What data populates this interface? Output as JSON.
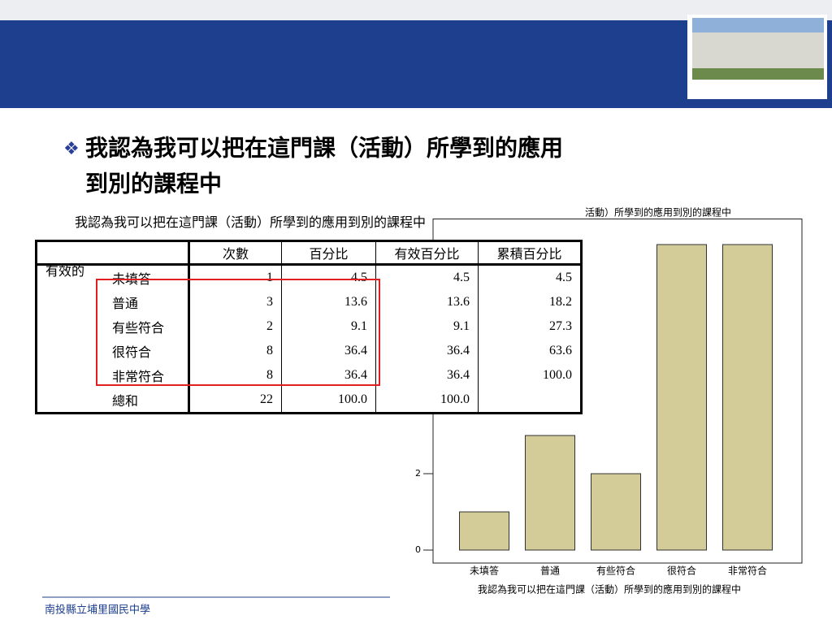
{
  "slide": {
    "title_line1": "我認為我可以把在這門課（活動）所學到的應用",
    "title_line2": "到別的課程中",
    "footer": "南投縣立埔里國民中學"
  },
  "table": {
    "caption": "我認為我可以把在這門課（活動）所學到的應用到別的課程中",
    "columns": [
      "次數",
      "百分比",
      "有效百分比",
      "累積百分比"
    ],
    "group": "有效的",
    "rows": [
      [
        "未填答",
        "1",
        "4.5",
        "4.5",
        "4.5"
      ],
      [
        "普通",
        "3",
        "13.6",
        "13.6",
        "18.2"
      ],
      [
        "有些符合",
        "2",
        "9.1",
        "9.1",
        "27.3"
      ],
      [
        "很符合",
        "8",
        "36.4",
        "36.4",
        "63.6"
      ],
      [
        "非常符合",
        "8",
        "36.4",
        "36.4",
        "100.0"
      ],
      [
        "總和",
        "22",
        "100.0",
        "100.0",
        ""
      ]
    ]
  },
  "chart_data": {
    "type": "bar",
    "title": "活動）所學到的應用到別的課程中",
    "x_label": "我認為我可以把在這門課（活動）所學到的應用到別的課程中",
    "categories": [
      "未填答",
      "普通",
      "有些符合",
      "很符合",
      "非常符合"
    ],
    "values": [
      1,
      3,
      2,
      8,
      8
    ],
    "color": "#d3cb98",
    "ylim": [
      0,
      8.5
    ],
    "yticks": [
      0,
      2
    ]
  }
}
